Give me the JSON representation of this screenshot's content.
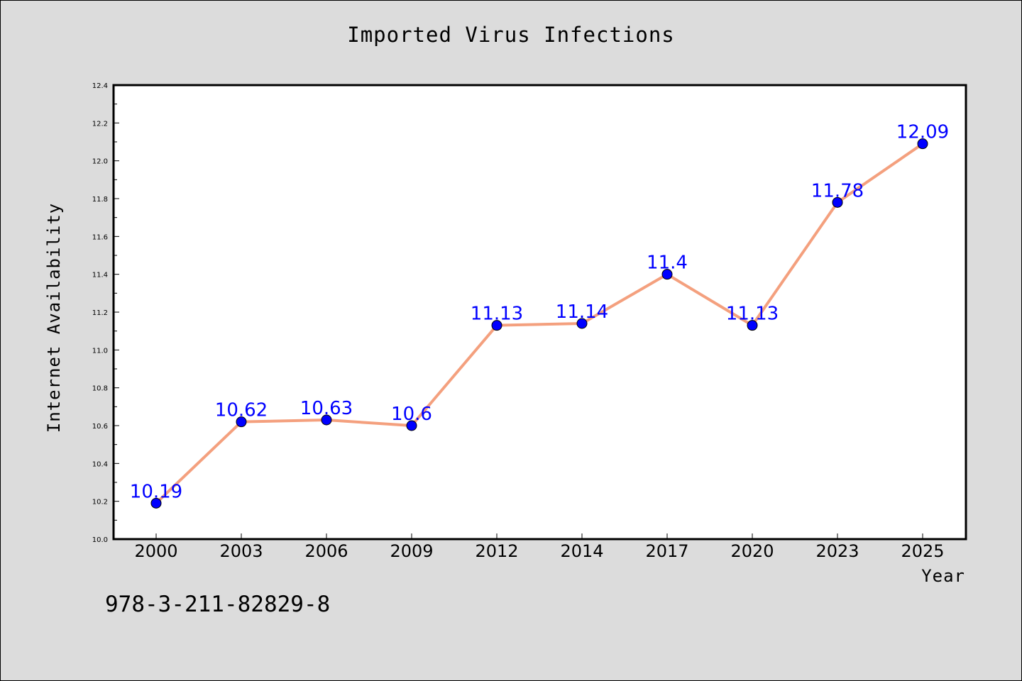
{
  "chart_data": {
    "type": "line",
    "title": "Imported Virus Infections",
    "xlabel": "Year",
    "ylabel": "Internet Availability",
    "categories": [
      "2000",
      "2003",
      "2006",
      "2009",
      "2012",
      "2014",
      "2017",
      "2020",
      "2023",
      "2025"
    ],
    "series": [
      {
        "values": [
          10.19,
          10.62,
          10.63,
          10.6,
          11.13,
          11.14,
          11.4,
          11.13,
          11.78,
          12.09
        ],
        "labels": [
          "10.19",
          "10.62",
          "10.63",
          "10.6",
          "11.13",
          "11.14",
          "11.4",
          "11.13",
          "11.78",
          "12.09"
        ]
      }
    ],
    "ylim": [
      10.0,
      12.4
    ],
    "yticks": [
      "10.0",
      "10.2",
      "10.4",
      "10.6",
      "10.8",
      "11.0",
      "11.2",
      "11.4",
      "11.6",
      "11.8",
      "12.0",
      "12.2",
      "12.4"
    ],
    "grid": false,
    "colors": {
      "line": "#f4a07e",
      "marker": "#0000ff",
      "data_label": "#0000ff",
      "background": "#dcdcdc",
      "plot_background": "#ffffff"
    }
  },
  "footer": {
    "code": "978-3-211-82829-8"
  }
}
